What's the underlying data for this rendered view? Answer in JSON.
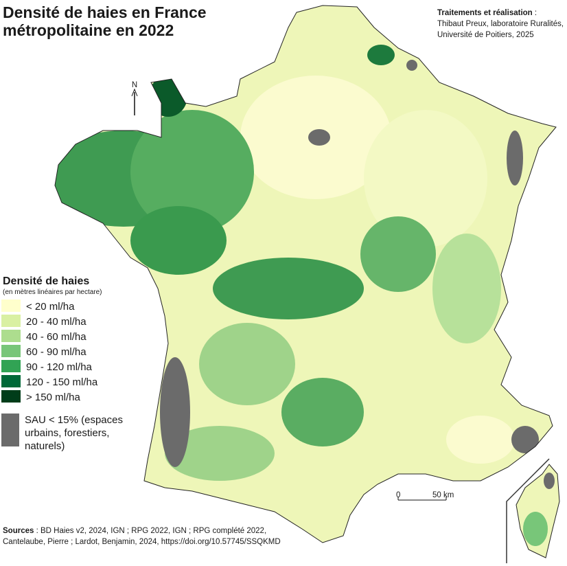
{
  "header": {
    "title_lines": [
      "Densité de haies en France",
      "métropolitaine en 2022"
    ]
  },
  "credits": {
    "heading": "Traitements et réalisation",
    "heading_suffix": " :",
    "lines": [
      "Thibaut Preux, laboratoire Ruralités,",
      "Université de Poitiers, 2025"
    ]
  },
  "north_label": "N",
  "legend": {
    "title": "Densité de haies",
    "subtitle": "(en mètres linéaires par hectare)",
    "items": [
      {
        "label": "< 20 ml/ha",
        "color": "#ffffcc"
      },
      {
        "label": "20 - 40 ml/ha",
        "color": "#d9f0a3"
      },
      {
        "label": "40 - 60 ml/ha",
        "color": "#addd8e"
      },
      {
        "label": "60 - 90 ml/ha",
        "color": "#78c679"
      },
      {
        "label": "90 - 120 ml/ha",
        "color": "#31a354"
      },
      {
        "label": "120 - 150 ml/ha",
        "color": "#006837"
      },
      {
        "label": "> 150 ml/ha",
        "color": "#003d1a"
      }
    ],
    "other": {
      "lines": [
        "SAU < 15% (espaces",
        "urbains, forestiers,",
        "naturels)"
      ],
      "color": "#6b6b6b"
    }
  },
  "scale": {
    "start": "0",
    "end": "50 km"
  },
  "sources": {
    "heading": "Sources",
    "lines": [
      " : BD Haies v2, 2024, IGN ; RPG 2022, IGN ; RPG complété 2022,",
      "Cantelaube, Pierre ; Lardot, Benjamin, 2024, https://doi.org/10.57745/SSQKMD"
    ]
  }
}
